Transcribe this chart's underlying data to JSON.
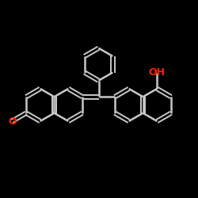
{
  "bg": "#000000",
  "bond_color": "#c8c8c8",
  "label_color": "#ff2200",
  "BL": 0.082,
  "figsize": [
    2.5,
    2.5
  ],
  "dpi": 100
}
